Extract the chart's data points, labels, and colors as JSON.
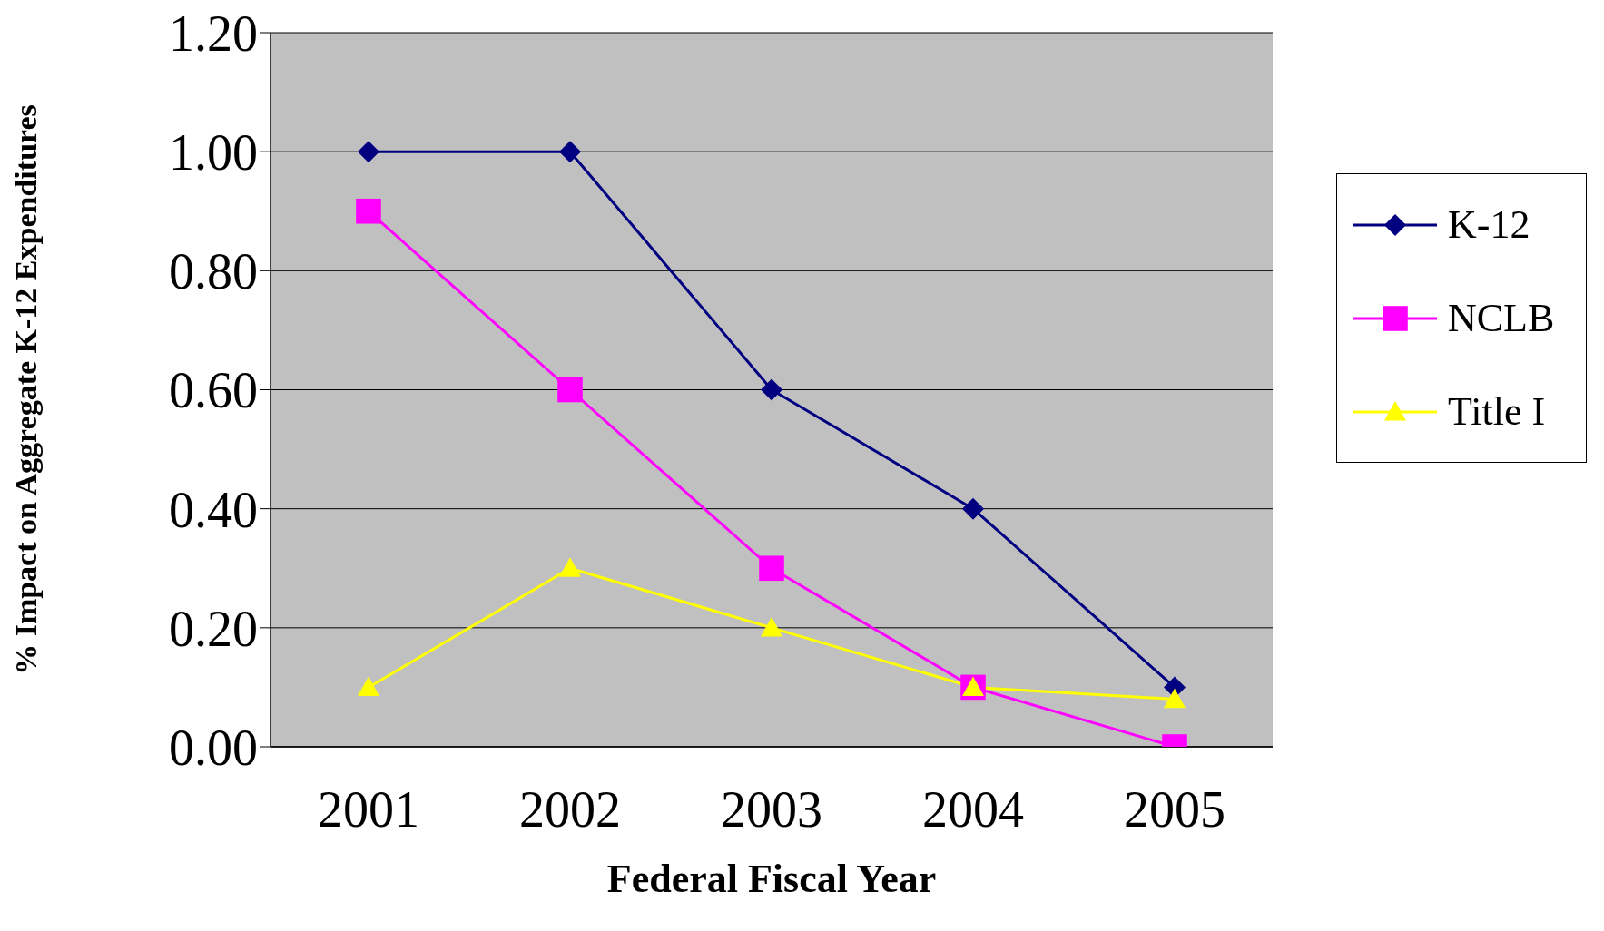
{
  "chart_data": {
    "type": "line",
    "xlabel": "Federal Fiscal Year",
    "ylabel": "% Impact on Aggregate K-12 Expenditures",
    "categories": [
      "2001",
      "2002",
      "2003",
      "2004",
      "2005"
    ],
    "series": [
      {
        "name": "K-12",
        "color": "#000080",
        "marker": "diamond",
        "values": [
          1.0,
          1.0,
          0.6,
          0.4,
          0.1
        ]
      },
      {
        "name": "NCLB",
        "color": "#ff00ff",
        "marker": "square",
        "values": [
          0.9,
          0.6,
          0.3,
          0.1,
          0.0
        ]
      },
      {
        "name": "Title I",
        "color": "#ffff00",
        "marker": "triangle",
        "values": [
          0.1,
          0.3,
          0.2,
          0.1,
          0.08
        ]
      }
    ],
    "ylim": [
      0,
      1.2
    ],
    "yticks": [
      {
        "value": 0,
        "label": "0.00"
      },
      {
        "value": 0.2,
        "label": "0.20"
      },
      {
        "value": 0.4,
        "label": "0.40"
      },
      {
        "value": 0.6,
        "label": "0.60"
      },
      {
        "value": 0.8,
        "label": "0.80"
      },
      {
        "value": 1.0,
        "label": "1.00"
      },
      {
        "value": 1.2,
        "label": "1.20"
      }
    ],
    "grid": "y",
    "legend": "right",
    "line_style": "solid"
  }
}
